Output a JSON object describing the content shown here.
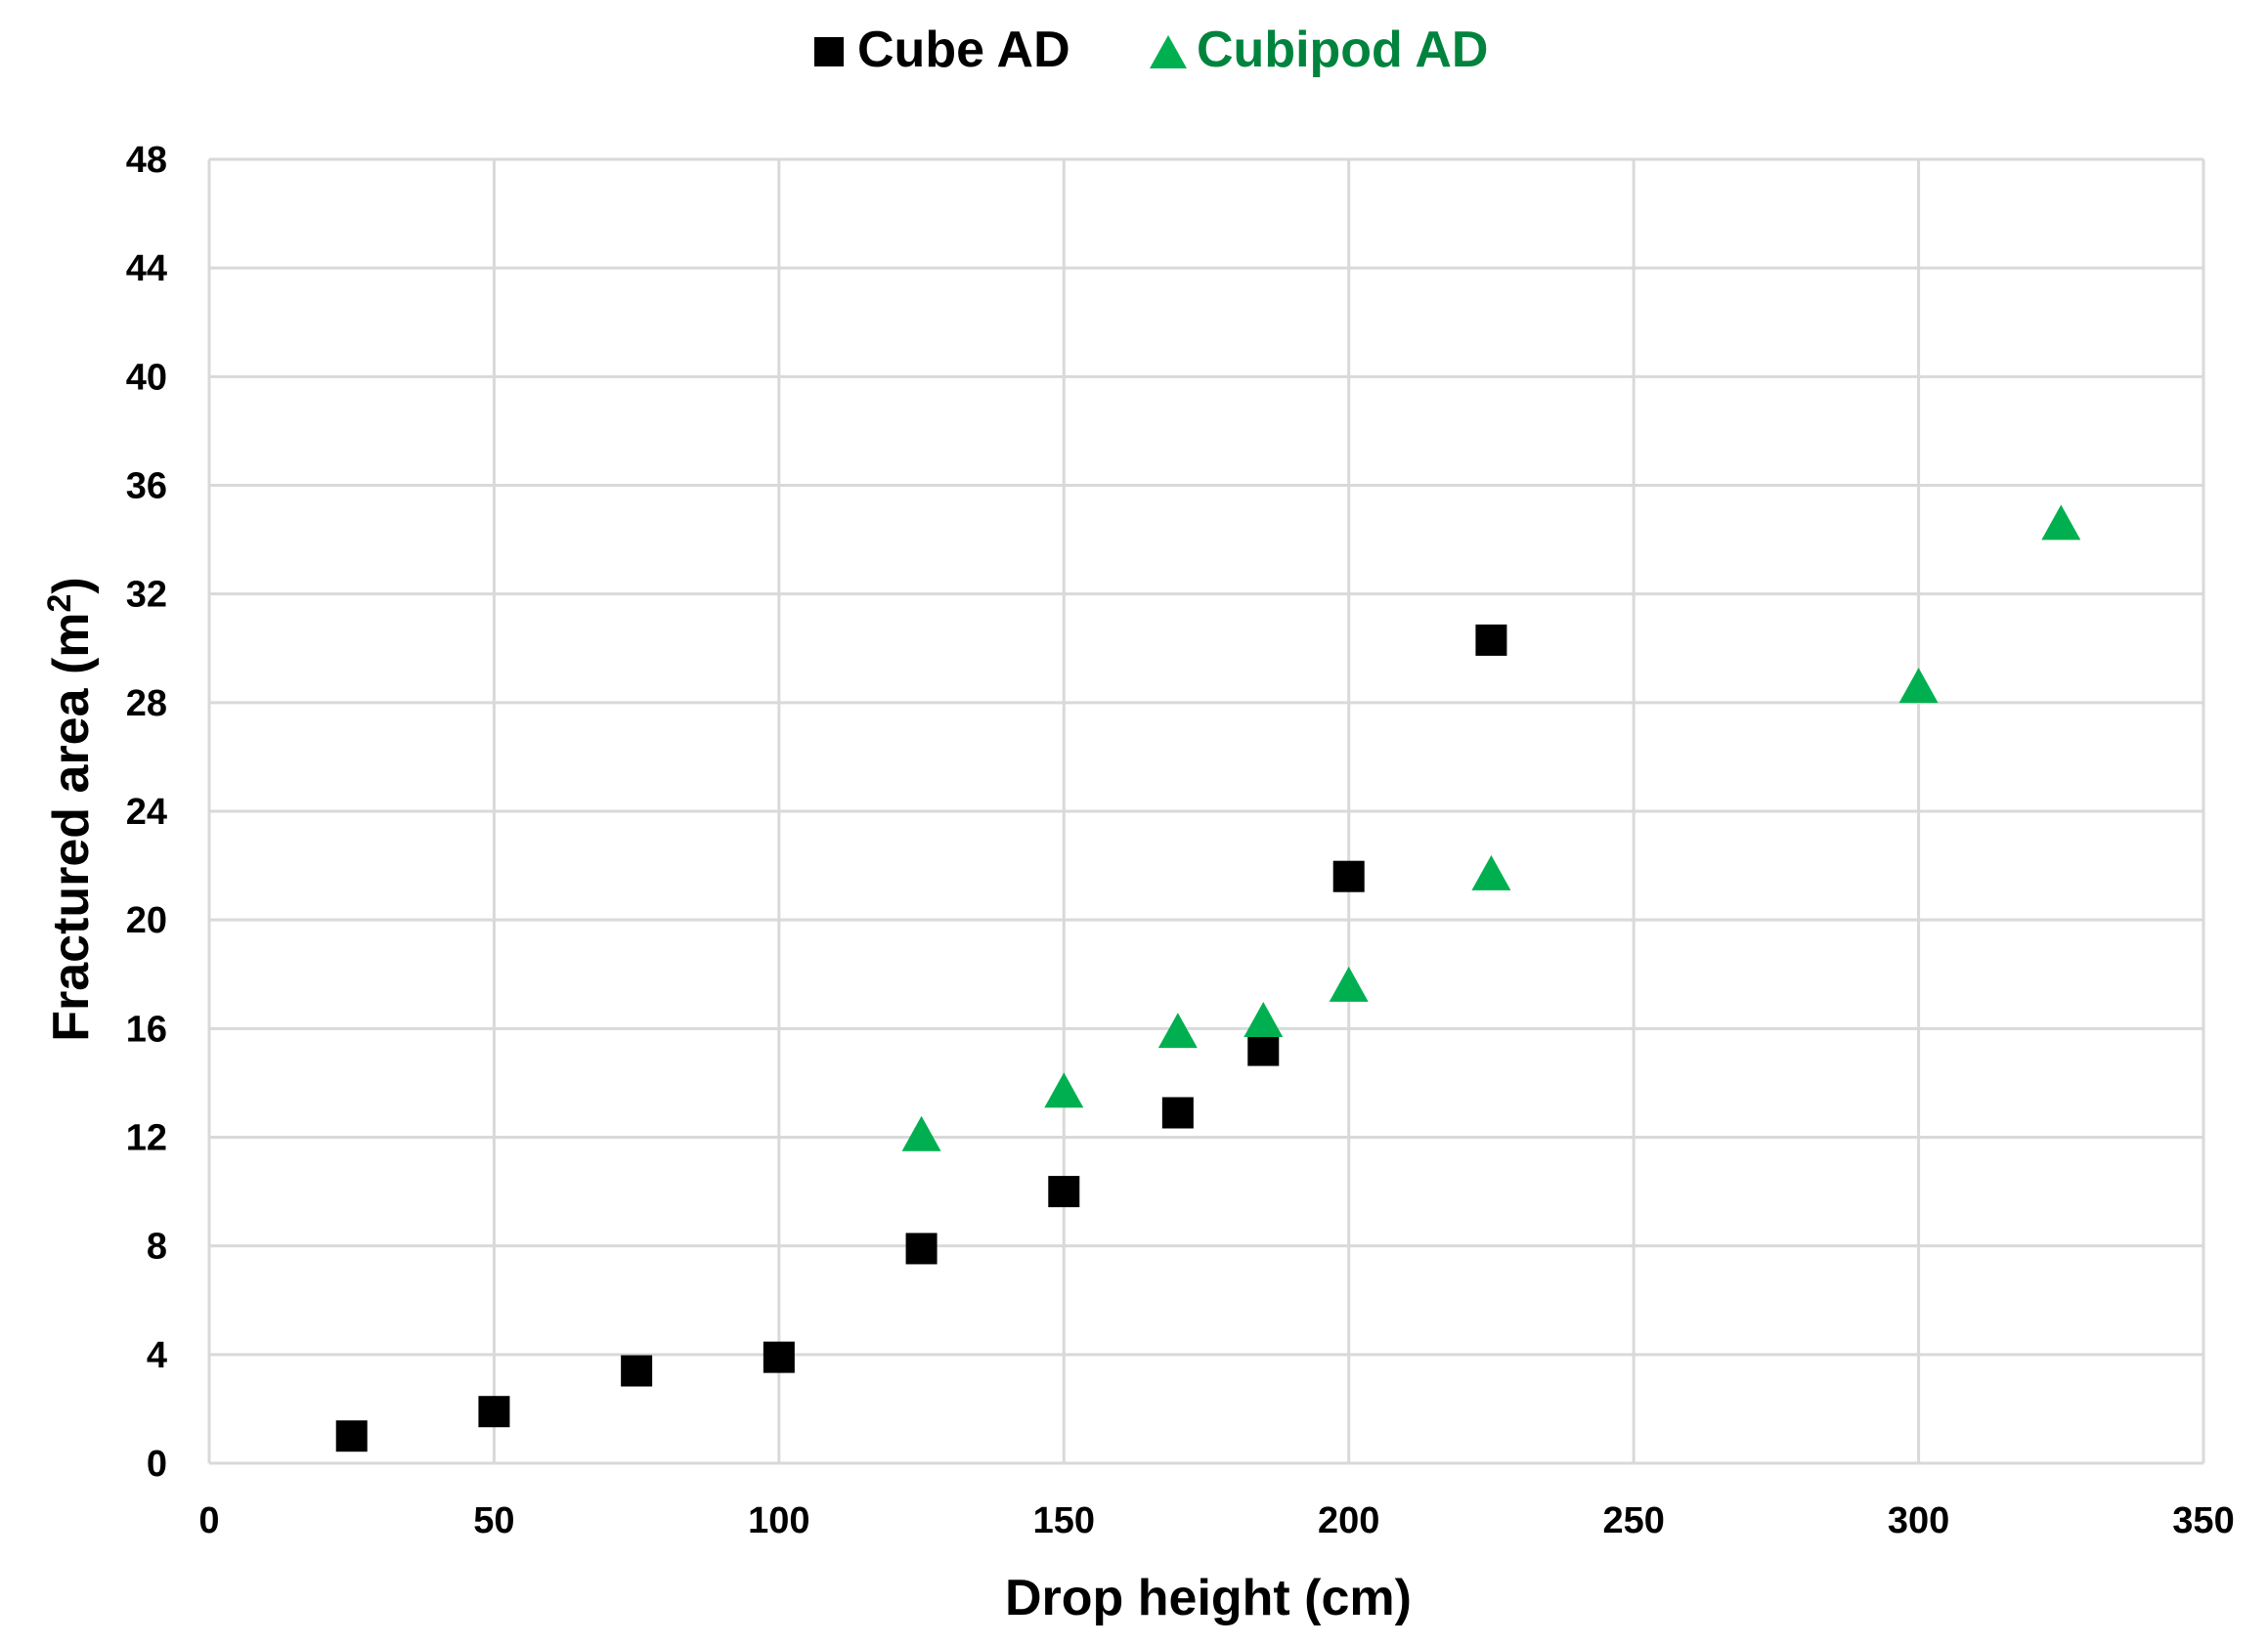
{
  "chart_data": {
    "type": "scatter",
    "title": "",
    "xlabel": "Drop height (cm)",
    "ylabel": "Fractured area (m",
    "ylabel_superscript": "2",
    "ylabel_suffix": ")",
    "xlim": [
      0,
      350
    ],
    "ylim": [
      0,
      48
    ],
    "xticks": [
      0,
      50,
      100,
      150,
      200,
      250,
      300,
      350
    ],
    "yticks": [
      0,
      4,
      8,
      12,
      16,
      20,
      24,
      28,
      32,
      36,
      40,
      44,
      48
    ],
    "grid": true,
    "legend_position": "top-center",
    "series": [
      {
        "name": "Cube AD",
        "marker": "square",
        "color": "#000000",
        "x": [
          25,
          50,
          75,
          100,
          125,
          150,
          170,
          185,
          200,
          225
        ],
        "y": [
          1.0,
          1.9,
          3.4,
          3.9,
          7.9,
          10.0,
          12.9,
          15.2,
          21.6,
          30.3
        ]
      },
      {
        "name": "Cubipod AD",
        "marker": "triangle",
        "color": "#00B050",
        "label_color": "#00843D",
        "x": [
          125,
          150,
          170,
          185,
          200,
          225,
          300,
          325
        ],
        "y": [
          12.1,
          13.7,
          15.9,
          16.3,
          17.6,
          21.7,
          28.6,
          34.6
        ]
      }
    ]
  }
}
